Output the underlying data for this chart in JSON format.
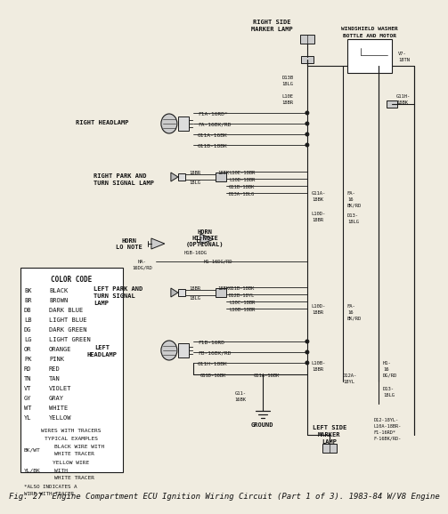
{
  "title": "Fig. 27  Engine Compartment ECU Ignition Wiring Circuit (Part 1 of 3). 1983-84 W/V8 Engine",
  "bg_color": "#e8e4dc",
  "paper_color": "#f0ece0",
  "line_color": "#1a1a1a",
  "text_color": "#111111",
  "title_fontsize": 6.5,
  "color_legend": [
    [
      "BK",
      "BLACK"
    ],
    [
      "BR",
      "BROWN"
    ],
    [
      "DB",
      "DARK BLUE"
    ],
    [
      "LB",
      "LIGHT BLUE"
    ],
    [
      "DG",
      "DARK GREEN"
    ],
    [
      "LG",
      "LIGHT GREEN"
    ],
    [
      "OR",
      "ORANGE"
    ],
    [
      "PK",
      "PINK"
    ],
    [
      "RD",
      "RED"
    ],
    [
      "TN",
      "TAN"
    ],
    [
      "VT",
      "VIOLET"
    ],
    [
      "GY",
      "GRAY"
    ],
    [
      "WT",
      "WHITE"
    ],
    [
      "YL",
      "YELLOW"
    ]
  ]
}
